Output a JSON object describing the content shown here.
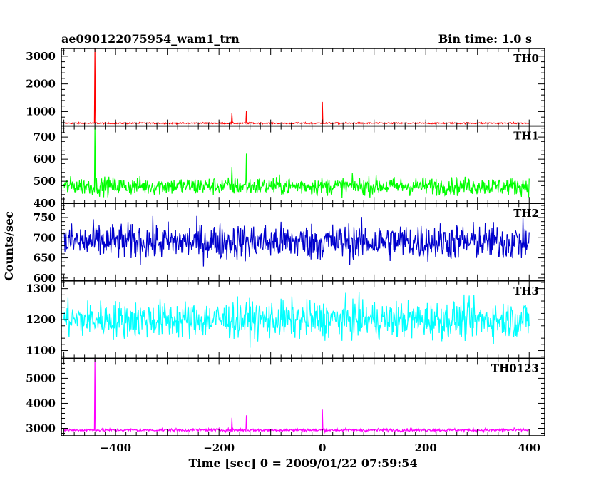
{
  "header": {
    "title": "ae090122075954_wam1_trn",
    "bin_time": "Bin time: 1.0 s"
  },
  "chart_data": {
    "type": "line",
    "title": "ae090122075954_wam1_trn",
    "subtitle": "Bin time: 1.0 s",
    "xlabel": "Time [sec] 0 = 2009/01/22 07:59:54",
    "ylabel": "Counts/sec",
    "xlim": [
      -505,
      430
    ],
    "xticks": [
      -400,
      -200,
      0,
      200,
      400
    ],
    "xtick_labels": [
      "−400",
      "−200",
      "0",
      "200",
      "400"
    ],
    "x_range_data": [
      -500,
      400
    ],
    "bin_seconds": 1.0,
    "series": [
      {
        "name": "TH0",
        "color": "#ff0000",
        "ylim": [
          480,
          3280
        ],
        "yticks": [
          1000,
          2000,
          3000
        ],
        "baseline": 580,
        "noise": 25,
        "spikes": [
          {
            "x": -440,
            "y": 3300
          },
          {
            "x": -175,
            "y": 960
          },
          {
            "x": -147,
            "y": 1020
          },
          {
            "x": 0,
            "y": 1350
          }
        ]
      },
      {
        "name": "TH1",
        "color": "#00ff00",
        "ylim": [
          400,
          750
        ],
        "yticks": [
          400,
          500,
          600,
          700
        ],
        "baseline": 478,
        "noise": 40,
        "spikes": [
          {
            "x": -440,
            "y": 745
          },
          {
            "x": -147,
            "y": 625
          },
          {
            "x": -175,
            "y": 565
          }
        ]
      },
      {
        "name": "TH2",
        "color": "#0000cd",
        "ylim": [
          593,
          785
        ],
        "yticks": [
          600,
          650,
          700,
          750
        ],
        "baseline": 690,
        "noise": 45,
        "spikes": []
      },
      {
        "name": "TH3",
        "color": "#00ffff",
        "ylim": [
          1075,
          1325
        ],
        "yticks": [
          1100,
          1200,
          1300
        ],
        "baseline": 1200,
        "noise": 60,
        "spikes": []
      },
      {
        "name": "TH0123",
        "color": "#ff00ff",
        "ylim": [
          2700,
          5800
        ],
        "yticks": [
          3000,
          4000,
          5000
        ],
        "baseline": 2930,
        "noise": 60,
        "spikes": [
          {
            "x": -440,
            "y": 5750
          },
          {
            "x": -175,
            "y": 3420
          },
          {
            "x": -147,
            "y": 3520
          },
          {
            "x": 0,
            "y": 3750
          }
        ]
      }
    ]
  }
}
